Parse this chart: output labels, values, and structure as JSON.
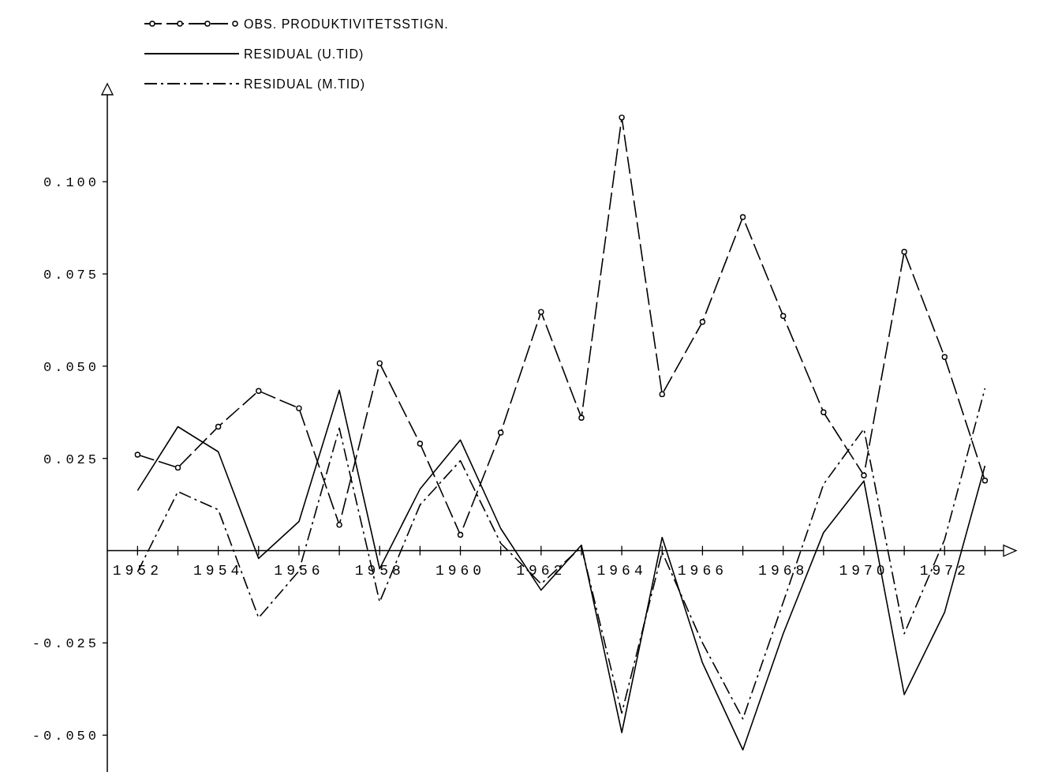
{
  "chart_data": {
    "type": "line",
    "x": [
      1952,
      1953,
      1954,
      1955,
      1956,
      1957,
      1958,
      1959,
      1960,
      1961,
      1962,
      1963,
      1964,
      1965,
      1966,
      1967,
      1968,
      1969,
      1970,
      1971,
      1972,
      1973
    ],
    "series": [
      {
        "name": "OBS. PRODUKTIVITETSSTIGN.",
        "color": "#000000",
        "line_style": "dashed",
        "marker": "circle",
        "values": [
          0.026,
          0.0225,
          0.0336,
          0.0433,
          0.0386,
          0.007,
          0.0508,
          0.029,
          0.0043,
          0.032,
          0.0647,
          0.036,
          0.1174,
          0.0424,
          0.062,
          0.0904,
          0.0636,
          0.0375,
          0.0204,
          0.081,
          0.0525,
          0.019
        ]
      },
      {
        "name": "RESIDUAL (U.TID)",
        "color": "#000000",
        "line_style": "solid",
        "marker": "none",
        "values": [
          0.0163,
          0.0336,
          0.0268,
          -0.0021,
          0.0079,
          0.0435,
          -0.0049,
          0.0167,
          0.03,
          0.006,
          -0.0107,
          0.0015,
          -0.0493,
          0.0036,
          -0.0304,
          -0.054,
          -0.0225,
          0.0049,
          0.0189,
          -0.039,
          -0.0167,
          0.023
        ]
      },
      {
        "name": "RESIDUAL (M.TID)",
        "color": "#000000",
        "line_style": "dotted",
        "marker": "none",
        "values": [
          -0.0058,
          0.016,
          0.0111,
          -0.0182,
          -0.0055,
          0.0332,
          -0.0139,
          0.0124,
          0.0244,
          0.002,
          -0.009,
          0.001,
          -0.044,
          -0.0004,
          -0.025,
          -0.0456,
          -0.014,
          0.018,
          0.033,
          -0.0225,
          0.003,
          0.044
        ]
      }
    ],
    "xlim": [
      1951.25,
      1973.5
    ],
    "xticks": [
      1952,
      {
        "value": 1953,
        "label": null
      },
      1954,
      {
        "value": 1955,
        "label": null
      },
      1956,
      {
        "value": 1957,
        "label": null
      },
      1958,
      {
        "value": 1959,
        "label": null
      },
      1960,
      {
        "value": 1961,
        "label": null
      },
      1962,
      {
        "value": 1963,
        "label": null
      },
      1964,
      {
        "value": 1965,
        "label": null
      },
      1966,
      {
        "value": 1967,
        "label": null
      },
      1968,
      {
        "value": 1969,
        "label": null
      },
      1970,
      {
        "value": 1971,
        "label": null
      },
      1972,
      {
        "value": 1973,
        "label": null
      }
    ],
    "ylim": [
      -0.06,
      0.124
    ],
    "yticks": [
      {
        "value": -0.05,
        "label": "-0.050"
      },
      {
        "value": -0.025,
        "label": "-0.025"
      },
      {
        "value": 0.025,
        "label": "0.025"
      },
      {
        "value": 0.05,
        "label": "0.050"
      },
      {
        "value": 0.075,
        "label": "0.075"
      },
      {
        "value": 0.1,
        "label": "0.100"
      }
    ],
    "legend": "top left",
    "grid": false
  }
}
